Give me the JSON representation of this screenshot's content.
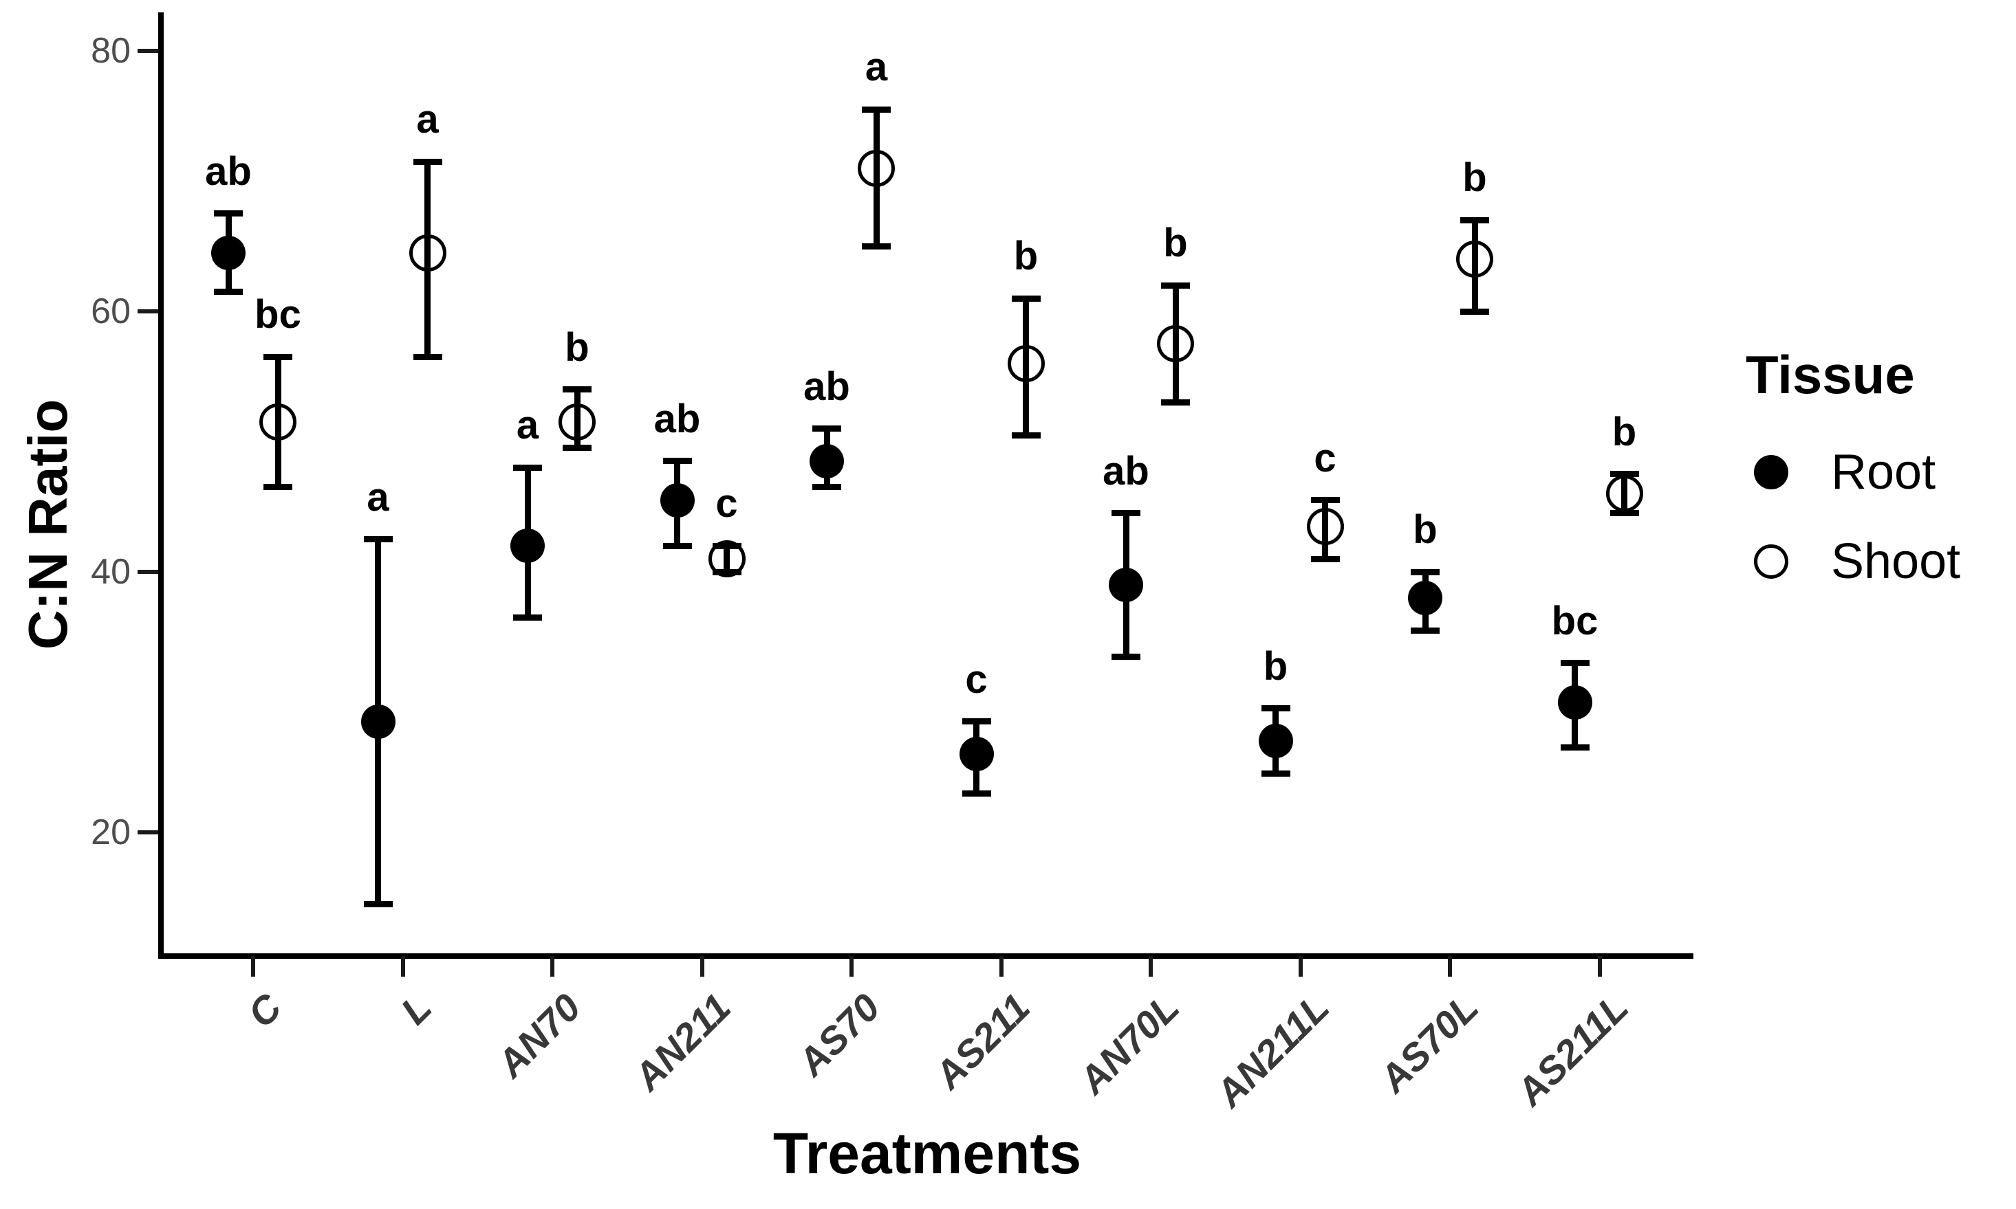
{
  "figure_title": "",
  "chart_data": {
    "type": "scatter",
    "subtype": "dot-plot-with-error-bars",
    "title": "",
    "xlabel": "Treatments",
    "ylabel": "C:N Ratio",
    "categories": [
      "C",
      "L",
      "AN70",
      "AN211",
      "AS70",
      "AS211",
      "AN70L",
      "AN211L",
      "AS70L",
      "AS211L"
    ],
    "y_ticks": [
      80,
      60,
      40,
      20
    ],
    "ylim": [
      10.5,
      83
    ],
    "grid": "off",
    "legend": {
      "title": "Tissue",
      "position": "right",
      "entries": [
        {
          "label": "Root",
          "marker": "filled-circle",
          "color": "#000000"
        },
        {
          "label": "Shoot",
          "marker": "open-circle",
          "color": "#000000"
        }
      ]
    },
    "series": [
      {
        "name": "Root",
        "marker": "filled-circle",
        "color": "#000000",
        "points": [
          {
            "category": "C",
            "mean": 64.5,
            "ci_low": 61.5,
            "ci_high": 67.5,
            "letter": "ab"
          },
          {
            "category": "L",
            "mean": 28.5,
            "ci_low": 14.5,
            "ci_high": 42.5,
            "letter": "a"
          },
          {
            "category": "AN70",
            "mean": 42.0,
            "ci_low": 36.5,
            "ci_high": 48.0,
            "letter": "a"
          },
          {
            "category": "AN211",
            "mean": 45.5,
            "ci_low": 42.0,
            "ci_high": 48.5,
            "letter": "ab"
          },
          {
            "category": "AS70",
            "mean": 48.5,
            "ci_low": 46.5,
            "ci_high": 51.0,
            "letter": "ab"
          },
          {
            "category": "AS211",
            "mean": 26.0,
            "ci_low": 23.0,
            "ci_high": 28.5,
            "letter": "c"
          },
          {
            "category": "AN70L",
            "mean": 39.0,
            "ci_low": 33.5,
            "ci_high": 44.5,
            "letter": "ab"
          },
          {
            "category": "AN211L",
            "mean": 27.0,
            "ci_low": 24.5,
            "ci_high": 29.5,
            "letter": "b"
          },
          {
            "category": "AS70L",
            "mean": 38.0,
            "ci_low": 35.5,
            "ci_high": 40.0,
            "letter": "b"
          },
          {
            "category": "AS211L",
            "mean": 30.0,
            "ci_low": 26.5,
            "ci_high": 33.0,
            "letter": "bc"
          }
        ]
      },
      {
        "name": "Shoot",
        "marker": "open-circle",
        "color": "#000000",
        "points": [
          {
            "category": "C",
            "mean": 51.5,
            "ci_low": 46.5,
            "ci_high": 56.5,
            "letter": "bc"
          },
          {
            "category": "L",
            "mean": 64.5,
            "ci_low": 56.5,
            "ci_high": 71.5,
            "letter": "a"
          },
          {
            "category": "AN70",
            "mean": 51.5,
            "ci_low": 49.5,
            "ci_high": 54.0,
            "letter": "b"
          },
          {
            "category": "AN211",
            "mean": 41.0,
            "ci_low": 40.0,
            "ci_high": 42.0,
            "letter": "c"
          },
          {
            "category": "AS70",
            "mean": 71.0,
            "ci_low": 65.0,
            "ci_high": 75.5,
            "letter": "a"
          },
          {
            "category": "AS211",
            "mean": 56.0,
            "ci_low": 50.5,
            "ci_high": 61.0,
            "letter": "b"
          },
          {
            "category": "AN70L",
            "mean": 57.5,
            "ci_low": 53.0,
            "ci_high": 62.0,
            "letter": "b"
          },
          {
            "category": "AN211L",
            "mean": 43.5,
            "ci_low": 41.0,
            "ci_high": 45.5,
            "letter": "c"
          },
          {
            "category": "AS70L",
            "mean": 64.0,
            "ci_low": 60.0,
            "ci_high": 67.0,
            "letter": "b"
          },
          {
            "category": "AS211L",
            "mean": 46.0,
            "ci_low": 44.5,
            "ci_high": 47.5,
            "letter": "b"
          }
        ]
      }
    ]
  }
}
